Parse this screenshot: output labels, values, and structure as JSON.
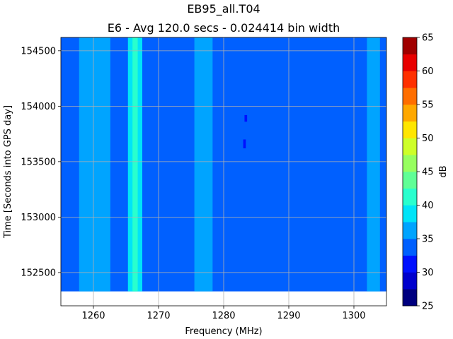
{
  "chart_data": {
    "type": "heatmap",
    "title": "EB95_all.T04",
    "subtitle": "E6 - Avg 120.0 secs - 0.024414 bin width",
    "xlabel": "Frequency (MHz)",
    "ylabel": "Time [Seconds into GPS day]",
    "xlim": [
      1255,
      1305
    ],
    "ylim": [
      152200,
      154620
    ],
    "x_ticks": [
      1260,
      1270,
      1280,
      1290,
      1300
    ],
    "y_ticks": [
      152500,
      153000,
      153500,
      154000,
      154500
    ],
    "grid": true,
    "data_time_range": [
      152330,
      154620
    ],
    "colorbar": {
      "label": "dB",
      "min": 25,
      "max": 65,
      "ticks": [
        25,
        30,
        35,
        40,
        45,
        50,
        55,
        60,
        65
      ],
      "levels": [
        {
          "from": 25.0,
          "to": 27.5,
          "color": "#00007f"
        },
        {
          "from": 27.5,
          "to": 30.0,
          "color": "#0000cd"
        },
        {
          "from": 30.0,
          "to": 32.5,
          "color": "#0010ff"
        },
        {
          "from": 32.5,
          "to": 35.0,
          "color": "#0060ff"
        },
        {
          "from": 35.0,
          "to": 37.5,
          "color": "#00a4ff"
        },
        {
          "from": 37.5,
          "to": 40.0,
          "color": "#00e4f8"
        },
        {
          "from": 40.0,
          "to": 42.5,
          "color": "#29ffce"
        },
        {
          "from": 42.5,
          "to": 45.0,
          "color": "#60ff96"
        },
        {
          "from": 45.0,
          "to": 47.5,
          "color": "#97ff60"
        },
        {
          "from": 47.5,
          "to": 50.0,
          "color": "#ceff29"
        },
        {
          "from": 50.0,
          "to": 52.5,
          "color": "#ffe600"
        },
        {
          "from": 52.5,
          "to": 55.0,
          "color": "#ffa800"
        },
        {
          "from": 55.0,
          "to": 57.5,
          "color": "#ff6e00"
        },
        {
          "from": 57.5,
          "to": 60.0,
          "color": "#ff3000"
        },
        {
          "from": 60.0,
          "to": 62.5,
          "color": "#e80000"
        },
        {
          "from": 62.5,
          "to": 65.0,
          "color": "#a00000"
        }
      ]
    },
    "background_level_db": 33.5,
    "features": [
      {
        "label": "band",
        "freq_range": [
          1257.8,
          1262.6
        ],
        "time_range": [
          152330,
          154620
        ],
        "level_db": 36
      },
      {
        "label": "band",
        "freq_range": [
          1265.3,
          1267.5
        ],
        "time_range": [
          152330,
          154620
        ],
        "level_db": 39
      },
      {
        "label": "band",
        "freq_range": [
          1266.0,
          1266.8
        ],
        "time_range": [
          152330,
          154620
        ],
        "level_db": 41
      },
      {
        "label": "band",
        "freq_range": [
          1275.5,
          1278.3
        ],
        "time_range": [
          152330,
          154620
        ],
        "level_db": 36
      },
      {
        "label": "band",
        "freq_range": [
          1302.0,
          1304.0
        ],
        "time_range": [
          152330,
          154620
        ],
        "level_db": 36
      },
      {
        "label": "dip",
        "freq_range": [
          1283.2,
          1283.6
        ],
        "time_range": [
          153860,
          153920
        ],
        "level_db": 31
      },
      {
        "label": "dip",
        "freq_range": [
          1283.0,
          1283.4
        ],
        "time_range": [
          153620,
          153700
        ],
        "level_db": 31
      }
    ]
  }
}
